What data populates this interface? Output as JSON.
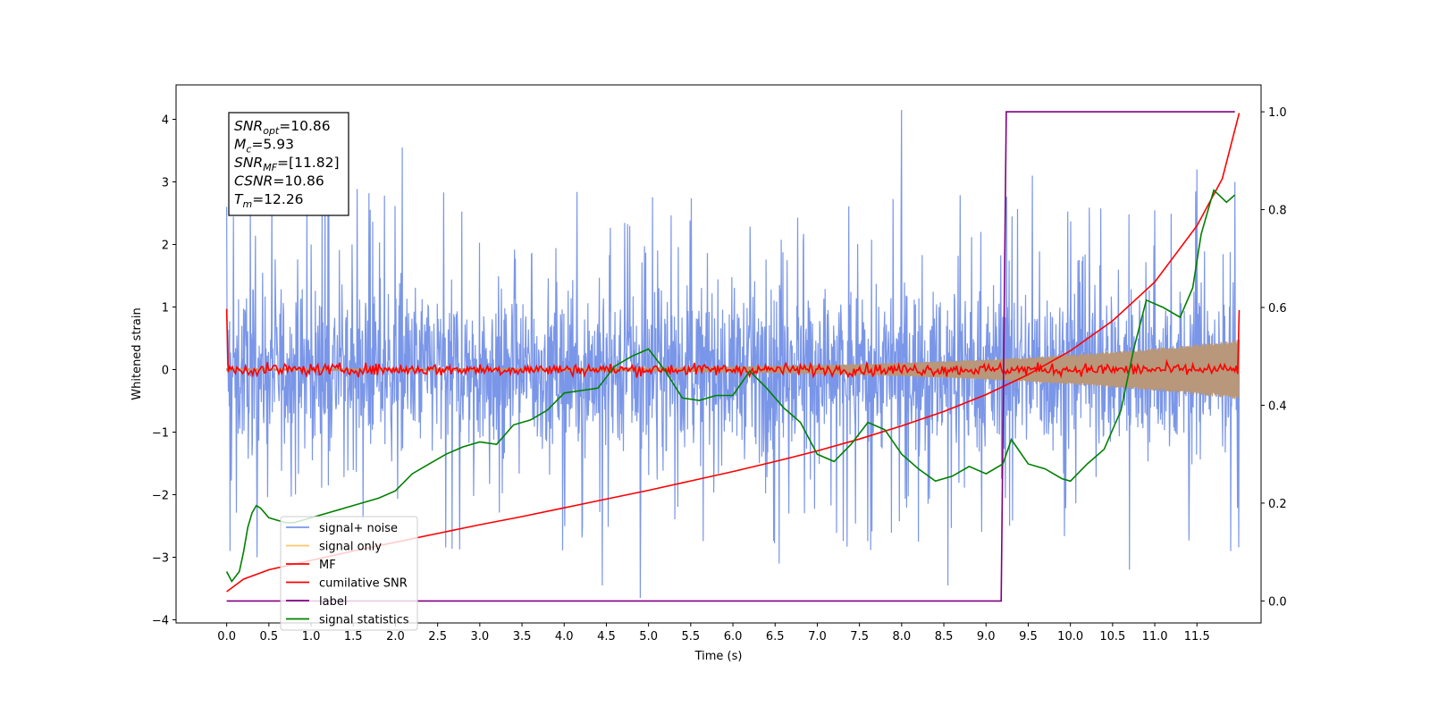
{
  "chart_data": {
    "type": "line",
    "xlabel": "Time (s)",
    "ylabel_left": "Whitened strain",
    "ylabel_right": "",
    "xlim": [
      -0.6,
      12.26
    ],
    "ylim_left": [
      -4.05,
      4.55
    ],
    "ylim_right": [
      -0.045,
      1.055
    ],
    "x_ticks": [
      0.0,
      0.5,
      1.0,
      1.5,
      2.0,
      2.5,
      3.0,
      3.5,
      4.0,
      4.5,
      5.0,
      5.5,
      6.0,
      6.5,
      7.0,
      7.5,
      8.0,
      8.5,
      9.0,
      9.5,
      10.0,
      10.5,
      11.0,
      11.5
    ],
    "x_tick_labels": [
      "0.0",
      "0.5",
      "1.0",
      "1.5",
      "2.0",
      "2.5",
      "3.0",
      "3.5",
      "4.0",
      "4.5",
      "5.0",
      "5.5",
      "6.0",
      "6.5",
      "7.0",
      "7.5",
      "8.0",
      "8.5",
      "9.0",
      "9.5",
      "10.0",
      "10.5",
      "11.0",
      "11.5"
    ],
    "y_left_ticks": [
      4,
      3,
      2,
      1,
      0,
      -1,
      -2,
      -3,
      -4
    ],
    "y_left_tick_labels": [
      "4",
      "3",
      "2",
      "1",
      "0",
      "−1",
      "−2",
      "−3",
      "−4"
    ],
    "y_right_ticks": [
      1.0,
      0.8,
      0.6,
      0.4,
      0.2,
      0.0
    ],
    "y_right_tick_labels": [
      "1.0",
      "0.8",
      "0.6",
      "0.4",
      "0.2",
      "0.0"
    ],
    "grid": false,
    "legend_position": "lower-left",
    "annotation": {
      "lines": [
        {
          "base": "SNR",
          "sub": "opt",
          "value": "=10.86"
        },
        {
          "base": "M",
          "sub": "c",
          "value": "=5.93"
        },
        {
          "base": "SNR",
          "sub": "MF",
          "value": "=[11.82]"
        },
        {
          "base": "CSNR",
          "sub": "",
          "value": "=10.86"
        },
        {
          "base": "T",
          "sub": "m",
          "value": "=12.26"
        }
      ]
    },
    "series": [
      {
        "name": "signal+ noise",
        "color": "#7a96e8",
        "axis": "left",
        "style": "noise",
        "amplitude": 1.3,
        "duration": 12.0,
        "peaks": [
          [
            0.0,
            2.6
          ],
          [
            0.04,
            -2.9
          ],
          [
            0.36,
            -3.0
          ],
          [
            1.0,
            2.0
          ],
          [
            1.2,
            2.8
          ],
          [
            2.08,
            3.55
          ],
          [
            4.9,
            -3.65
          ],
          [
            4.45,
            -3.45
          ],
          [
            6.55,
            -3.1
          ],
          [
            8.0,
            4.15
          ],
          [
            8.55,
            -3.45
          ],
          [
            9.55,
            3.1
          ],
          [
            10.7,
            -3.2
          ],
          [
            11.5,
            3.2
          ],
          [
            11.9,
            -2.9
          ],
          [
            11.95,
            3.0
          ]
        ]
      },
      {
        "name": "signal only",
        "color": "#ffc66d",
        "axis": "left",
        "style": "chirp",
        "amplitude_start": 0.02,
        "amplitude_end": 0.48,
        "duration": 12.0
      },
      {
        "name": "MF",
        "color": "#ff0000",
        "axis": "left",
        "style": "noise",
        "amplitude": 0.08,
        "duration": 12.0,
        "start": 0.97,
        "end": 0.95
      },
      {
        "name": "cumilative SNR",
        "color": "#ff0000",
        "axis": "left",
        "x": [
          0,
          0.2,
          0.5,
          1.0,
          1.5,
          2.0,
          2.5,
          3.0,
          3.5,
          4.0,
          4.5,
          5.0,
          5.5,
          6.0,
          6.5,
          7.0,
          7.5,
          8.0,
          8.5,
          9.0,
          9.5,
          10.0,
          10.5,
          11.0,
          11.5,
          11.8,
          12.0
        ],
        "y": [
          -3.55,
          -3.35,
          -3.2,
          -3.05,
          -2.9,
          -2.76,
          -2.62,
          -2.48,
          -2.35,
          -2.21,
          -2.07,
          -1.93,
          -1.78,
          -1.63,
          -1.47,
          -1.3,
          -1.11,
          -0.9,
          -0.67,
          -0.4,
          -0.08,
          0.3,
          0.78,
          1.4,
          2.3,
          3.05,
          4.1
        ]
      },
      {
        "name": "label",
        "color": "#800080",
        "axis": "right",
        "x": [
          0.0,
          9.18,
          9.24,
          11.95
        ],
        "y": [
          0.0,
          0.0,
          1.0,
          1.0
        ]
      },
      {
        "name": "signal statistics",
        "color": "#008000",
        "axis": "right",
        "x": [
          0.0,
          0.06,
          0.15,
          0.2,
          0.25,
          0.3,
          0.35,
          0.4,
          0.5,
          0.6,
          0.7,
          0.8,
          1.0,
          1.2,
          1.4,
          1.6,
          1.8,
          2.0,
          2.2,
          2.4,
          2.6,
          2.8,
          3.0,
          3.2,
          3.4,
          3.6,
          3.8,
          4.0,
          4.2,
          4.4,
          4.6,
          4.8,
          5.0,
          5.2,
          5.4,
          5.6,
          5.8,
          6.0,
          6.2,
          6.4,
          6.6,
          6.8,
          7.0,
          7.2,
          7.4,
          7.6,
          7.8,
          8.0,
          8.2,
          8.4,
          8.6,
          8.8,
          9.0,
          9.2,
          9.3,
          9.5,
          9.7,
          9.9,
          10.0,
          10.2,
          10.4,
          10.6,
          10.75,
          10.9,
          11.1,
          11.3,
          11.45,
          11.55,
          11.7,
          11.85,
          11.95
        ],
        "y": [
          0.06,
          0.04,
          0.06,
          0.1,
          0.15,
          0.18,
          0.195,
          0.19,
          0.17,
          0.165,
          0.16,
          0.16,
          0.17,
          0.18,
          0.19,
          0.2,
          0.21,
          0.225,
          0.26,
          0.28,
          0.3,
          0.315,
          0.325,
          0.32,
          0.36,
          0.37,
          0.39,
          0.425,
          0.43,
          0.435,
          0.48,
          0.5,
          0.515,
          0.47,
          0.415,
          0.41,
          0.42,
          0.42,
          0.47,
          0.435,
          0.395,
          0.365,
          0.3,
          0.285,
          0.32,
          0.365,
          0.35,
          0.3,
          0.27,
          0.245,
          0.255,
          0.275,
          0.26,
          0.28,
          0.33,
          0.28,
          0.27,
          0.25,
          0.245,
          0.28,
          0.31,
          0.39,
          0.515,
          0.615,
          0.6,
          0.58,
          0.64,
          0.75,
          0.84,
          0.815,
          0.83
        ]
      }
    ]
  }
}
